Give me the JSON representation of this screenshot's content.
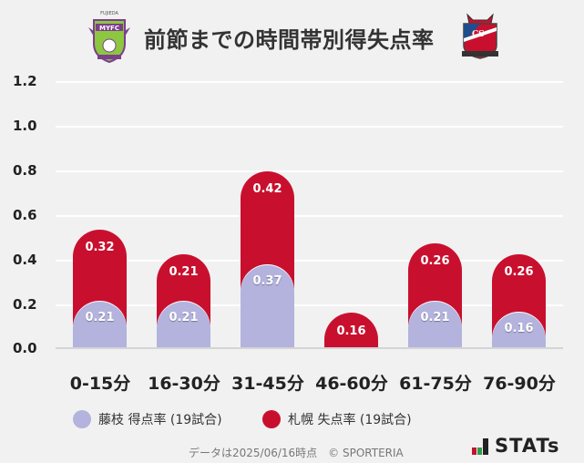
{
  "header": {
    "title": "前節までの時間帯別得失点率",
    "left_team_logo": "fujieda-myfc-crest",
    "right_team_logo": "consadole-sapporo-crest"
  },
  "chart_data": {
    "type": "bar",
    "stacked": true,
    "title": "前節までの時間帯別得失点率",
    "xlabel": "",
    "ylabel": "",
    "ylim": [
      0,
      1.2
    ],
    "yticks": [
      "1.2",
      "1.0",
      "0.8",
      "0.6",
      "0.4",
      "0.2",
      "0.0"
    ],
    "grid": true,
    "legend_position": "bottom",
    "categories": [
      "0-15分",
      "16-30分",
      "31-45分",
      "46-60分",
      "61-75分",
      "76-90分"
    ],
    "series": [
      {
        "name": "藤枝 得点率 (19試合)",
        "color": "#b3b3de",
        "values": [
          0.21,
          0.21,
          0.37,
          0,
          0.21,
          0.16
        ],
        "labels": [
          "0.21",
          "0.21",
          "0.37",
          "",
          "0.21",
          "0.16"
        ]
      },
      {
        "name": "札幌 失点率 (19試合)",
        "color": "#c8102e",
        "values": [
          0.32,
          0.21,
          0.42,
          0.16,
          0.26,
          0.26
        ],
        "labels": [
          "0.32",
          "0.21",
          "0.42",
          "0.16",
          "0.26",
          "0.26"
        ]
      }
    ]
  },
  "legend": {
    "items": [
      {
        "label": "藤枝 得点率 (19試合)",
        "color": "#b3b3de"
      },
      {
        "label": "札幌 失点率 (19試合)",
        "color": "#c8102e"
      }
    ]
  },
  "footer": {
    "note": "データは2025/06/16時点　© SPORTERIA",
    "brand": "STATs",
    "brand_colors": [
      "#c8102e",
      "#2e9e4a",
      "#222222"
    ]
  }
}
